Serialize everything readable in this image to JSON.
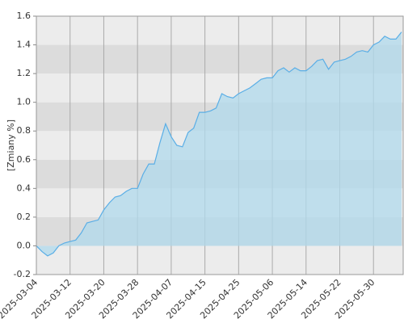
{
  "chart_data": {
    "type": "area",
    "ylabel": "[Zmiany %]",
    "categories": [
      "2025-03-04",
      null,
      null,
      null,
      null,
      null,
      "2025-03-12",
      null,
      null,
      null,
      null,
      null,
      "2025-03-20",
      null,
      null,
      null,
      null,
      null,
      "2025-03-28",
      null,
      null,
      null,
      null,
      null,
      "2025-04-07",
      null,
      null,
      null,
      null,
      null,
      "2025-04-15",
      null,
      null,
      null,
      null,
      null,
      "2025-04-25",
      null,
      null,
      null,
      null,
      null,
      "2025-05-06",
      null,
      null,
      null,
      null,
      null,
      "2025-05-14",
      null,
      null,
      null,
      null,
      null,
      "2025-05-22",
      null,
      null,
      null,
      null,
      null,
      "2025-05-30",
      null,
      null,
      null,
      null,
      null
    ],
    "values": [
      0.0,
      -0.04,
      -0.07,
      -0.05,
      0.0,
      0.02,
      0.03,
      0.04,
      0.09,
      0.16,
      0.17,
      0.18,
      0.25,
      0.3,
      0.34,
      0.35,
      0.38,
      0.4,
      0.4,
      0.5,
      0.57,
      0.57,
      0.72,
      0.85,
      0.76,
      0.7,
      0.69,
      0.79,
      0.82,
      0.93,
      0.93,
      0.94,
      0.96,
      1.06,
      1.04,
      1.03,
      1.06,
      1.08,
      1.1,
      1.13,
      1.16,
      1.17,
      1.17,
      1.22,
      1.24,
      1.21,
      1.24,
      1.22,
      1.22,
      1.25,
      1.29,
      1.3,
      1.23,
      1.28,
      1.29,
      1.3,
      1.32,
      1.35,
      1.36,
      1.35,
      1.4,
      1.42,
      1.46,
      1.44,
      1.44,
      1.49
    ],
    "color": "#b0d9ec",
    "line_color": "#5aaee6",
    "ylim": [
      -0.2,
      1.6
    ],
    "yticks": [
      -0.2,
      {
        "value": 0,
        "label": "0.0"
      },
      0.2,
      0.4,
      0.6,
      0.8,
      {
        "value": 1,
        "label": "1.0"
      },
      1.2,
      1.4,
      1.6
    ],
    "grid": true
  }
}
